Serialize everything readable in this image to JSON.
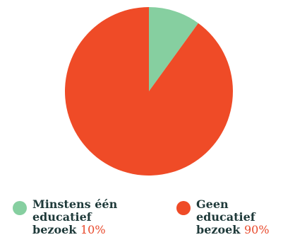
{
  "chart_data": {
    "type": "pie",
    "title": "",
    "series": [
      {
        "name": "Minstens één educatief bezoek",
        "label_lines": [
          "Minstens één",
          "educatief",
          "bezoek"
        ],
        "value": 10,
        "value_label": "10%",
        "color": "#86cfa0"
      },
      {
        "name": "Geen educatief bezoek",
        "label_lines": [
          "Geen",
          "educatief",
          "bezoek"
        ],
        "value": 90,
        "value_label": "90%",
        "color": "#ef4b27"
      }
    ],
    "legend_position": "bottom",
    "start_angle": "top",
    "direction": "clockwise"
  }
}
